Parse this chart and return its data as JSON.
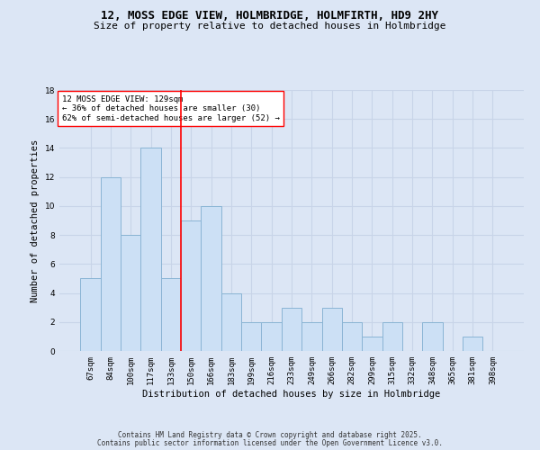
{
  "title": "12, MOSS EDGE VIEW, HOLMBRIDGE, HOLMFIRTH, HD9 2HY",
  "subtitle": "Size of property relative to detached houses in Holmbridge",
  "xlabel": "Distribution of detached houses by size in Holmbridge",
  "ylabel": "Number of detached properties",
  "categories": [
    "67sqm",
    "84sqm",
    "100sqm",
    "117sqm",
    "133sqm",
    "150sqm",
    "166sqm",
    "183sqm",
    "199sqm",
    "216sqm",
    "233sqm",
    "249sqm",
    "266sqm",
    "282sqm",
    "299sqm",
    "315sqm",
    "332sqm",
    "348sqm",
    "365sqm",
    "381sqm",
    "398sqm"
  ],
  "values": [
    5,
    12,
    8,
    14,
    5,
    9,
    10,
    4,
    2,
    2,
    3,
    2,
    3,
    2,
    1,
    2,
    0,
    2,
    0,
    1,
    0
  ],
  "bar_color": "#cce0f5",
  "bar_edge_color": "#8ab4d4",
  "bar_linewidth": 0.7,
  "grid_color": "#c8d4e8",
  "background_color": "#dce6f5",
  "vline_x": 4.5,
  "vline_color": "red",
  "vline_linewidth": 1.2,
  "annotation_text": "12 MOSS EDGE VIEW: 129sqm\n← 36% of detached houses are smaller (30)\n62% of semi-detached houses are larger (52) →",
  "annotation_box_edgecolor": "red",
  "annotation_box_facecolor": "white",
  "ylim": [
    0,
    18
  ],
  "yticks": [
    0,
    2,
    4,
    6,
    8,
    10,
    12,
    14,
    16,
    18
  ],
  "footer_line1": "Contains HM Land Registry data © Crown copyright and database right 2025.",
  "footer_line2": "Contains public sector information licensed under the Open Government Licence v3.0.",
  "title_fontsize": 9,
  "subtitle_fontsize": 8,
  "axis_label_fontsize": 7.5,
  "tick_fontsize": 6.5,
  "annotation_fontsize": 6.5,
  "footer_fontsize": 5.5
}
